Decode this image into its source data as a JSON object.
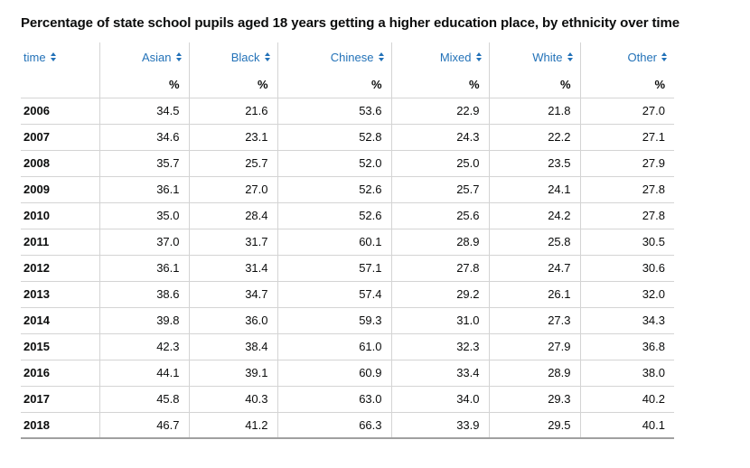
{
  "page": {
    "kind": "sortable-statistics-table"
  },
  "colors": {
    "header_link_blue": "#2372b8",
    "text_dark": "#0b0c0c",
    "gridline_gray": "#d4d4d4",
    "table_bottom_border": "#a0a0a0",
    "background": "#ffffff"
  },
  "icons": {
    "sort": "sort-arrows-icon"
  },
  "chart_data": {
    "type": "table",
    "title": "Percentage of state school pupils aged 18 years getting a higher education place, by ethnicity over time",
    "columns": [
      "time",
      "Asian",
      "Black",
      "Chinese",
      "Mixed",
      "White",
      "Other"
    ],
    "columns_sortable": [
      true,
      true,
      true,
      true,
      true,
      true,
      true
    ],
    "units_row": [
      "",
      "%",
      "%",
      "%",
      "%",
      "%",
      "%"
    ],
    "rows": [
      [
        "2006",
        "34.5",
        "21.6",
        "53.6",
        "22.9",
        "21.8",
        "27.0"
      ],
      [
        "2007",
        "34.6",
        "23.1",
        "52.8",
        "24.3",
        "22.2",
        "27.1"
      ],
      [
        "2008",
        "35.7",
        "25.7",
        "52.0",
        "25.0",
        "23.5",
        "27.9"
      ],
      [
        "2009",
        "36.1",
        "27.0",
        "52.6",
        "25.7",
        "24.1",
        "27.8"
      ],
      [
        "2010",
        "35.0",
        "28.4",
        "52.6",
        "25.6",
        "24.2",
        "27.8"
      ],
      [
        "2011",
        "37.0",
        "31.7",
        "60.1",
        "28.9",
        "25.8",
        "30.5"
      ],
      [
        "2012",
        "36.1",
        "31.4",
        "57.1",
        "27.8",
        "24.7",
        "30.6"
      ],
      [
        "2013",
        "38.6",
        "34.7",
        "57.4",
        "29.2",
        "26.1",
        "32.0"
      ],
      [
        "2014",
        "39.8",
        "36.0",
        "59.3",
        "31.0",
        "27.3",
        "34.3"
      ],
      [
        "2015",
        "42.3",
        "38.4",
        "61.0",
        "32.3",
        "27.9",
        "36.8"
      ],
      [
        "2016",
        "44.1",
        "39.1",
        "60.9",
        "33.4",
        "28.9",
        "38.0"
      ],
      [
        "2017",
        "45.8",
        "40.3",
        "63.0",
        "34.0",
        "29.3",
        "40.2"
      ],
      [
        "2018",
        "46.7",
        "41.2",
        "66.3",
        "33.9",
        "29.5",
        "40.1"
      ]
    ],
    "layout": {
      "grid": "vertical and horizontal light gray lines",
      "header_text_color_note": "column headers are blue sortable links with up/down sort arrows",
      "value_alignment": "right",
      "row_label_alignment": "left"
    }
  }
}
